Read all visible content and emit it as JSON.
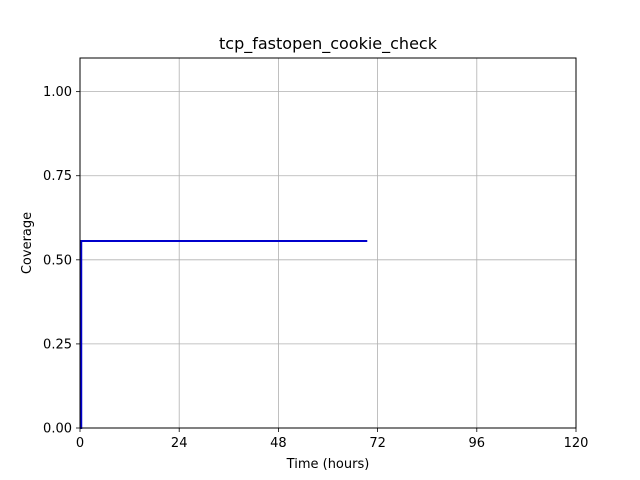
{
  "chart_data": {
    "type": "line",
    "title": "tcp_fastopen_cookie_check",
    "xlabel": "Time (hours)",
    "ylabel": "Coverage",
    "xlim": [
      0,
      120
    ],
    "ylim": [
      0,
      1.1
    ],
    "xticks": [
      0,
      24,
      48,
      72,
      96,
      120
    ],
    "xtick_labels": [
      "0",
      "24",
      "48",
      "72",
      "96",
      "120"
    ],
    "yticks": [
      0,
      0.25,
      0.5,
      0.75,
      1.0
    ],
    "ytick_labels": [
      "0.00",
      "0.25",
      "0.50",
      "0.75",
      "1.00"
    ],
    "grid": true,
    "legend": "none",
    "series": [
      {
        "color": "#0000cc",
        "x": [
          0,
          0.3,
          0.3,
          69.5
        ],
        "y": [
          0,
          0,
          0.556,
          0.556
        ]
      }
    ]
  }
}
